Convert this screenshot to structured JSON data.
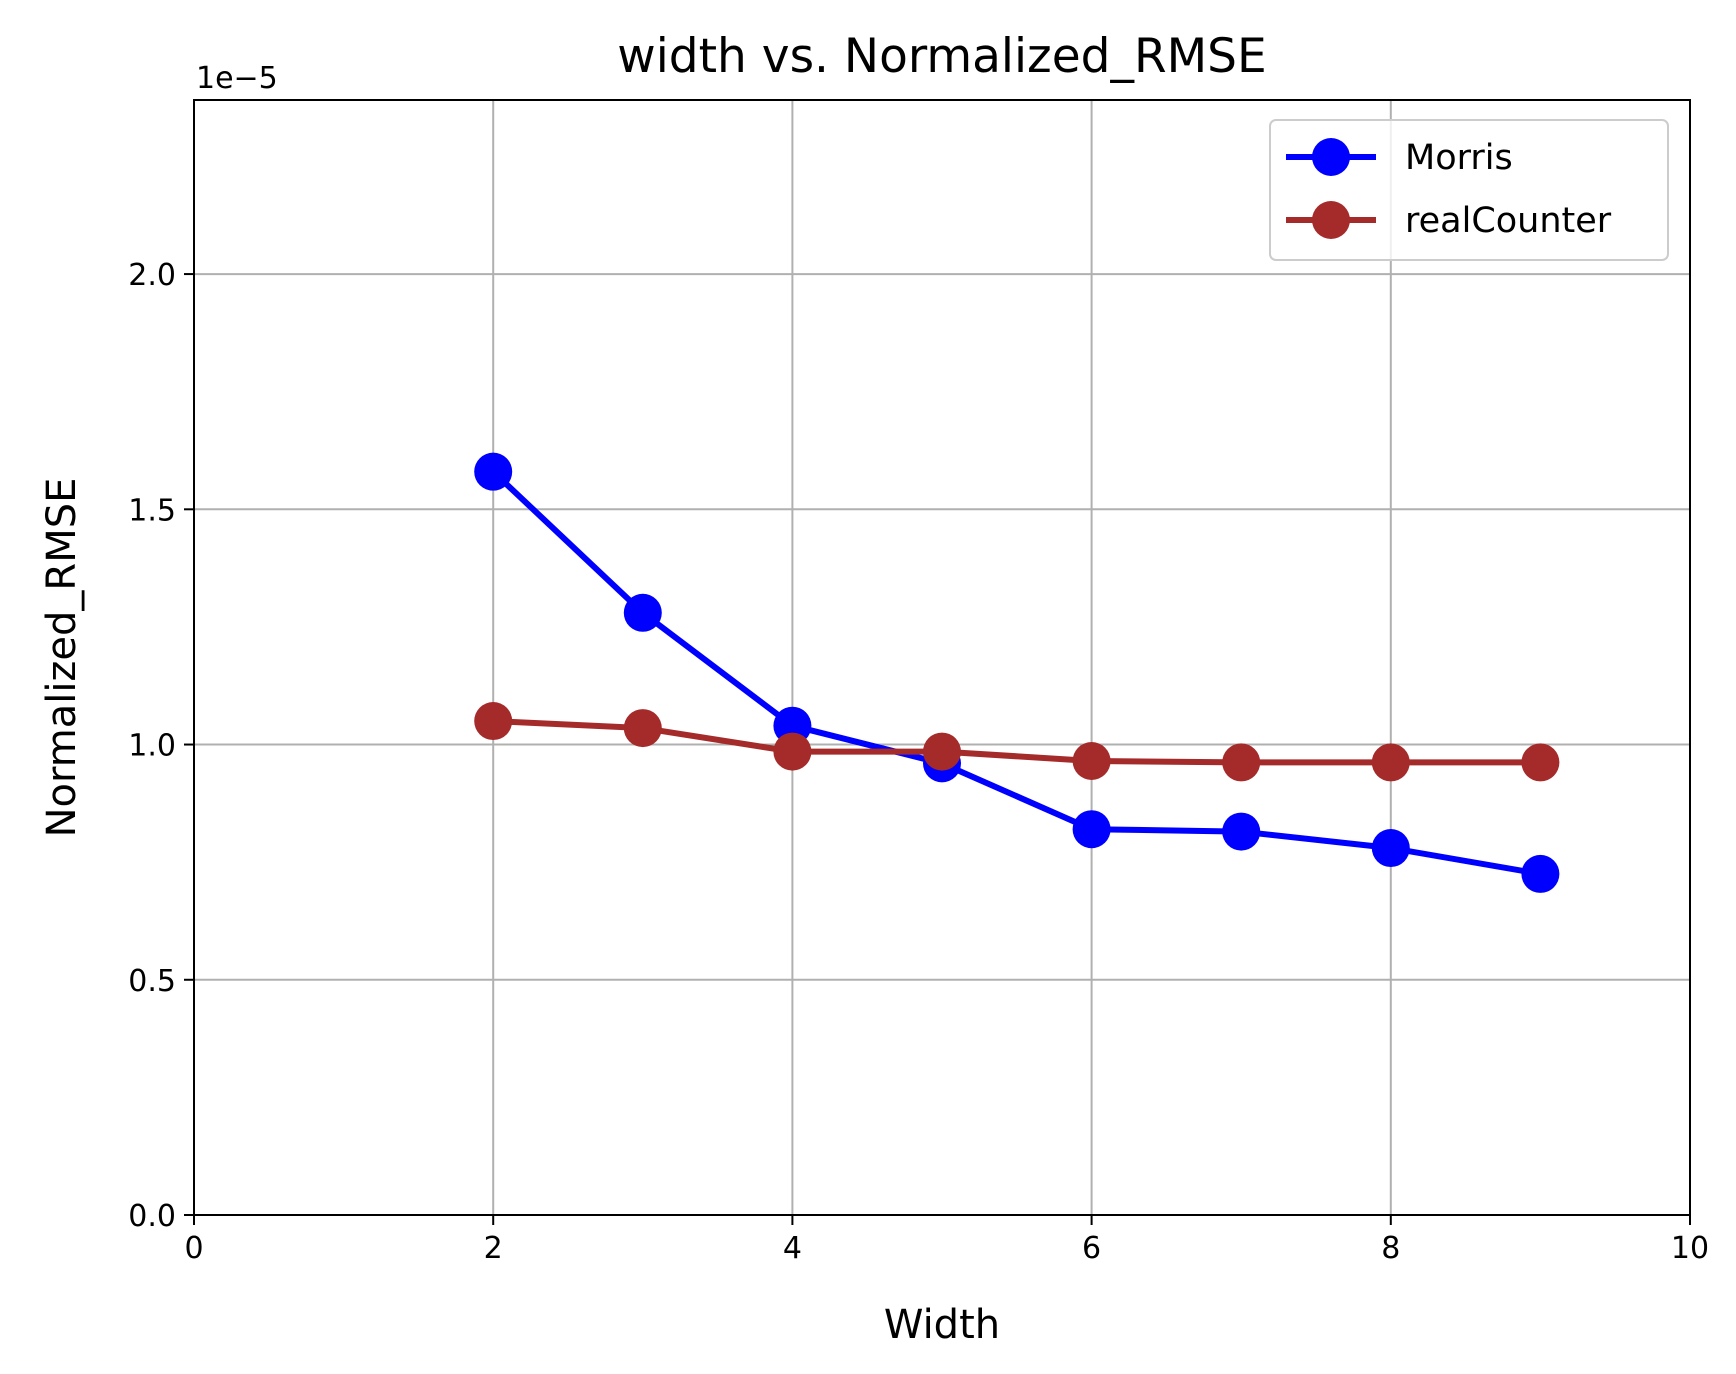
{
  "chart_data": {
    "type": "line",
    "title": "width vs. Normalized_RMSE",
    "xlabel": "Width",
    "ylabel": "Normalized_RMSE",
    "y_offset_text": "1e−5",
    "xlim": [
      0,
      10
    ],
    "ylim": [
      0,
      2.37
    ],
    "x_ticks": [
      0,
      2,
      4,
      6,
      8,
      10
    ],
    "x_tick_labels": [
      "0",
      "2",
      "4",
      "6",
      "8",
      "10"
    ],
    "y_ticks": [
      0.0,
      0.5,
      1.0,
      1.5,
      2.0
    ],
    "y_tick_labels": [
      "0.0",
      "0.5",
      "1.0",
      "1.5",
      "2.0"
    ],
    "grid": true,
    "legend_position": "top-right",
    "x": [
      2,
      3,
      4,
      5,
      6,
      7,
      8,
      9
    ],
    "series": [
      {
        "name": "Morris",
        "color": "#0000ff",
        "values": [
          1.58,
          1.28,
          1.04,
          0.96,
          0.82,
          0.815,
          0.78,
          0.725
        ]
      },
      {
        "name": "realCounter",
        "color": "#a52a2a",
        "values": [
          1.05,
          1.035,
          0.985,
          0.985,
          0.965,
          0.962,
          0.962,
          0.962
        ]
      }
    ]
  }
}
